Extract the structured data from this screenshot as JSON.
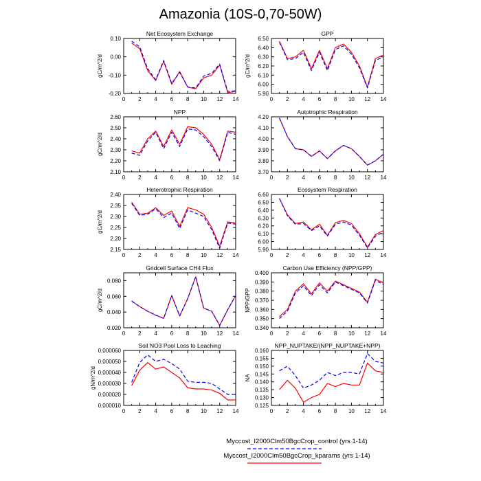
{
  "title": "Amazonia (10S-0,70-50W)",
  "colors": {
    "control": "#0000ff",
    "kparams": "#ff0000"
  },
  "legend": [
    {
      "label": "Myccost_I2000Clm50BgcCrop_control (yrs 1-14)",
      "style": "dashed",
      "color": "#0000ff"
    },
    {
      "label": "Myccost_I2000Clm50BgcCrop_kparams (yrs 1-14)",
      "style": "solid",
      "color": "#ff0000"
    }
  ],
  "chart_data": [
    {
      "type": "line",
      "title": "Net Ecosystem Exchange",
      "ylabel": "gC/m^2/d",
      "xlim": [
        0,
        14
      ],
      "xticks": [
        "0",
        "2",
        "4",
        "6",
        "8",
        "10",
        "12",
        "14"
      ],
      "ylim": [
        -0.2,
        0.1
      ],
      "yticks": [
        "0.10",
        "0.00",
        "-0.10",
        "-0.20"
      ],
      "ytick_values": [
        0.1,
        0.0,
        -0.1,
        -0.2
      ],
      "x": [
        1,
        2,
        3,
        4,
        5,
        6,
        7,
        8,
        9,
        10,
        11,
        12,
        13,
        14
      ],
      "series": [
        {
          "name": "control",
          "values": [
            0.085,
            0.055,
            -0.065,
            -0.125,
            -0.02,
            -0.145,
            -0.085,
            -0.165,
            -0.17,
            -0.105,
            -0.09,
            -0.04,
            -0.19,
            -0.185
          ]
        },
        {
          "name": "kparams",
          "values": [
            0.075,
            0.045,
            -0.075,
            -0.13,
            -0.025,
            -0.15,
            -0.08,
            -0.165,
            -0.175,
            -0.115,
            -0.1,
            -0.045,
            -0.195,
            -0.19
          ]
        }
      ]
    },
    {
      "type": "line",
      "title": "GPP",
      "ylabel": "gC/m^2/d",
      "xlim": [
        0,
        14
      ],
      "xticks": [
        "0",
        "2",
        "4",
        "6",
        "8",
        "10",
        "12",
        "14"
      ],
      "ylim": [
        5.9,
        6.5
      ],
      "yticks": [
        "6.50",
        "6.40",
        "6.30",
        "6.20",
        "6.10",
        "6.00",
        "5.90"
      ],
      "ytick_values": [
        6.5,
        6.4,
        6.3,
        6.2,
        6.1,
        6.0,
        5.9
      ],
      "x": [
        1,
        2,
        3,
        4,
        5,
        6,
        7,
        8,
        9,
        10,
        11,
        12,
        13,
        14
      ],
      "series": [
        {
          "name": "control",
          "values": [
            6.46,
            6.27,
            6.28,
            6.35,
            6.15,
            6.35,
            6.15,
            6.38,
            6.42,
            6.33,
            6.18,
            5.96,
            6.26,
            6.3
          ]
        },
        {
          "name": "kparams",
          "values": [
            6.47,
            6.28,
            6.3,
            6.37,
            6.17,
            6.37,
            6.17,
            6.4,
            6.44,
            6.35,
            6.2,
            5.97,
            6.28,
            6.32
          ]
        }
      ]
    },
    {
      "type": "line",
      "title": "NPP",
      "ylabel": "gC/m^2/d",
      "xlim": [
        0,
        14
      ],
      "xticks": [
        "0",
        "2",
        "4",
        "6",
        "8",
        "10",
        "12",
        "14"
      ],
      "ylim": [
        2.1,
        2.6
      ],
      "yticks": [
        "2.60",
        "2.50",
        "2.40",
        "2.30",
        "2.20",
        "2.10"
      ],
      "ytick_values": [
        2.6,
        2.5,
        2.4,
        2.3,
        2.2,
        2.1
      ],
      "x": [
        1,
        2,
        3,
        4,
        5,
        6,
        7,
        8,
        9,
        10,
        11,
        12,
        13,
        14
      ],
      "series": [
        {
          "name": "control",
          "values": [
            2.27,
            2.25,
            2.38,
            2.46,
            2.31,
            2.46,
            2.33,
            2.49,
            2.48,
            2.42,
            2.33,
            2.2,
            2.46,
            2.44
          ]
        },
        {
          "name": "kparams",
          "values": [
            2.29,
            2.27,
            2.4,
            2.47,
            2.33,
            2.48,
            2.35,
            2.51,
            2.5,
            2.44,
            2.35,
            2.21,
            2.47,
            2.46
          ]
        }
      ]
    },
    {
      "type": "line",
      "title": "Autotrophic Respiration",
      "ylabel": "",
      "xlim": [
        0,
        14
      ],
      "xticks": [
        "0",
        "2",
        "4",
        "6",
        "8",
        "10",
        "12",
        "14"
      ],
      "ylim": [
        3.7,
        4.2
      ],
      "yticks": [
        "4.20",
        "4.10",
        "4.00",
        "3.90",
        "3.80",
        "3.70"
      ],
      "ytick_values": [
        4.2,
        4.1,
        4.0,
        3.9,
        3.8,
        3.7
      ],
      "x": [
        1,
        2,
        3,
        4,
        5,
        6,
        7,
        8,
        9,
        10,
        11,
        12,
        13,
        14
      ],
      "series": [
        {
          "name": "control",
          "values": [
            4.19,
            4.02,
            3.91,
            3.9,
            3.84,
            3.89,
            3.82,
            3.89,
            3.94,
            3.91,
            3.84,
            3.76,
            3.8,
            3.86
          ]
        },
        {
          "name": "kparams",
          "values": [
            4.19,
            4.02,
            3.91,
            3.9,
            3.84,
            3.89,
            3.82,
            3.89,
            3.94,
            3.91,
            3.84,
            3.76,
            3.8,
            3.86
          ]
        }
      ]
    },
    {
      "type": "line",
      "title": "Heterotrophic Respiration",
      "ylabel": "gC/m^2/d",
      "xlim": [
        0,
        14
      ],
      "xticks": [
        "0",
        "2",
        "4",
        "6",
        "8",
        "10",
        "12",
        "14"
      ],
      "ylim": [
        2.15,
        2.4
      ],
      "yticks": [
        "2.40",
        "2.35",
        "2.30",
        "2.25",
        "2.20",
        "2.15"
      ],
      "ytick_values": [
        2.4,
        2.35,
        2.3,
        2.25,
        2.2,
        2.15
      ],
      "x": [
        1,
        2,
        3,
        4,
        5,
        6,
        7,
        8,
        9,
        10,
        11,
        12,
        13,
        14
      ],
      "series": [
        {
          "name": "control",
          "values": [
            2.36,
            2.305,
            2.31,
            2.335,
            2.295,
            2.315,
            2.245,
            2.33,
            2.315,
            2.3,
            2.24,
            2.155,
            2.27,
            2.265
          ]
        },
        {
          "name": "kparams",
          "values": [
            2.365,
            2.31,
            2.315,
            2.34,
            2.305,
            2.325,
            2.255,
            2.34,
            2.33,
            2.31,
            2.25,
            2.165,
            2.275,
            2.27
          ]
        }
      ]
    },
    {
      "type": "line",
      "title": "Ecosystem Respiration",
      "ylabel": "",
      "xlim": [
        0,
        14
      ],
      "xticks": [
        "0",
        "2",
        "4",
        "6",
        "8",
        "10",
        "12",
        "14"
      ],
      "ylim": [
        5.9,
        6.6
      ],
      "yticks": [
        "6.60",
        "6.50",
        "6.40",
        "6.30",
        "6.20",
        "6.10",
        "6.00",
        "5.90"
      ],
      "ytick_values": [
        6.6,
        6.5,
        6.4,
        6.3,
        6.2,
        6.1,
        6.0,
        5.9
      ],
      "x": [
        1,
        2,
        3,
        4,
        5,
        6,
        7,
        8,
        9,
        10,
        11,
        12,
        13,
        14
      ],
      "series": [
        {
          "name": "control",
          "values": [
            6.55,
            6.33,
            6.22,
            6.23,
            6.14,
            6.2,
            6.07,
            6.22,
            6.25,
            6.21,
            6.08,
            5.92,
            6.07,
            6.12
          ]
        },
        {
          "name": "kparams",
          "values": [
            6.55,
            6.34,
            6.23,
            6.25,
            6.15,
            6.22,
            6.08,
            6.24,
            6.27,
            6.23,
            6.1,
            5.93,
            6.09,
            6.14
          ]
        }
      ]
    },
    {
      "type": "line",
      "title": "Gridcell Surface CH4 Flux",
      "ylabel": "gC/m^2/d",
      "xlim": [
        0,
        14
      ],
      "xticks": [
        "0",
        "2",
        "4",
        "6",
        "8",
        "10",
        "12",
        "14"
      ],
      "ylim": [
        0.02,
        0.09
      ],
      "yticks": [
        "0.080",
        "0.060",
        "0.040",
        "0.020"
      ],
      "ytick_values": [
        0.08,
        0.06,
        0.04,
        0.02
      ],
      "x": [
        1,
        2,
        3,
        4,
        5,
        6,
        7,
        8,
        9,
        10,
        11,
        12,
        13,
        14
      ],
      "series": [
        {
          "name": "control",
          "values": [
            0.054,
            0.047,
            0.041,
            0.036,
            0.032,
            0.061,
            0.035,
            0.057,
            0.085,
            0.045,
            0.041,
            0.023,
            0.043,
            0.061
          ]
        },
        {
          "name": "kparams",
          "values": [
            0.054,
            0.047,
            0.041,
            0.036,
            0.032,
            0.061,
            0.035,
            0.057,
            0.085,
            0.045,
            0.041,
            0.023,
            0.043,
            0.061
          ]
        }
      ]
    },
    {
      "type": "line",
      "title": "Carbon Use Efficiency (NPP/GPP)",
      "ylabel": "NPP/GPP",
      "xlim": [
        0,
        14
      ],
      "xticks": [
        "0",
        "2",
        "4",
        "6",
        "8",
        "10",
        "12",
        "14"
      ],
      "ylim": [
        0.34,
        0.4
      ],
      "yticks": [
        "0.400",
        "0.390",
        "0.380",
        "0.370",
        "0.360",
        "0.350",
        "0.340"
      ],
      "ytick_values": [
        0.4,
        0.39,
        0.38,
        0.37,
        0.36,
        0.35,
        0.34
      ],
      "x": [
        1,
        2,
        3,
        4,
        5,
        6,
        7,
        8,
        9,
        10,
        11,
        12,
        13,
        14
      ],
      "series": [
        {
          "name": "control",
          "values": [
            0.35,
            0.358,
            0.378,
            0.386,
            0.375,
            0.387,
            0.378,
            0.39,
            0.386,
            0.382,
            0.378,
            0.367,
            0.392,
            0.387
          ]
        },
        {
          "name": "kparams",
          "values": [
            0.352,
            0.36,
            0.38,
            0.388,
            0.377,
            0.389,
            0.38,
            0.391,
            0.387,
            0.383,
            0.379,
            0.368,
            0.393,
            0.389
          ]
        }
      ]
    },
    {
      "type": "line",
      "title": "Soil NO3 Pool Loss to Leaching",
      "ylabel": "gN/m^2/d",
      "xlim": [
        0,
        14
      ],
      "xticks": [
        "0",
        "2",
        "4",
        "6",
        "8",
        "10",
        "12",
        "14"
      ],
      "ylim": [
        1e-05,
        6e-05
      ],
      "yticks": [
        "0.000060",
        "0.000050",
        "0.000040",
        "0.000030",
        "0.000020",
        "0.000010"
      ],
      "ytick_values": [
        6e-05,
        5e-05,
        4e-05,
        3e-05,
        2e-05,
        1e-05
      ],
      "x": [
        1,
        2,
        3,
        4,
        5,
        6,
        7,
        8,
        9,
        10,
        11,
        12,
        13,
        14
      ],
      "series": [
        {
          "name": "control",
          "values": [
            3.1e-05,
            4.9e-05,
            5.6e-05,
            5e-05,
            5.2e-05,
            4.8e-05,
            4.3e-05,
            3.2e-05,
            3.1e-05,
            3.1e-05,
            3e-05,
            2.5e-05,
            2e-05,
            2e-05
          ]
        },
        {
          "name": "kparams",
          "values": [
            2.8e-05,
            4.2e-05,
            4.9e-05,
            4.3e-05,
            4.5e-05,
            4e-05,
            3.5e-05,
            2.6e-05,
            2.5e-05,
            2.5e-05,
            2.4e-05,
            2.1e-05,
            1.5e-05,
            1.5e-05
          ]
        }
      ]
    },
    {
      "type": "line",
      "title": "NPP_NUPTAKE/(NPP_NUPTAKE+NPP)",
      "ylabel": "NA",
      "xlim": [
        0,
        14
      ],
      "xticks": [
        "0",
        "2",
        "4",
        "6",
        "8",
        "10",
        "12",
        "14"
      ],
      "ylim": [
        0.125,
        0.16
      ],
      "yticks": [
        "0.160",
        "0.155",
        "0.150",
        "0.145",
        "0.140",
        "0.135",
        "0.130",
        "0.125"
      ],
      "ytick_values": [
        0.16,
        0.155,
        0.15,
        0.145,
        0.14,
        0.135,
        0.13,
        0.125
      ],
      "x": [
        1,
        2,
        3,
        4,
        5,
        6,
        7,
        8,
        9,
        10,
        11,
        12,
        13,
        14
      ],
      "series": [
        {
          "name": "control",
          "values": [
            0.147,
            0.15,
            0.144,
            0.136,
            0.138,
            0.141,
            0.146,
            0.144,
            0.146,
            0.146,
            0.145,
            0.158,
            0.153,
            0.152
          ]
        },
        {
          "name": "kparams",
          "values": [
            0.135,
            0.141,
            0.136,
            0.127,
            0.13,
            0.132,
            0.139,
            0.137,
            0.139,
            0.138,
            0.138,
            0.152,
            0.147,
            0.146
          ]
        }
      ]
    }
  ]
}
